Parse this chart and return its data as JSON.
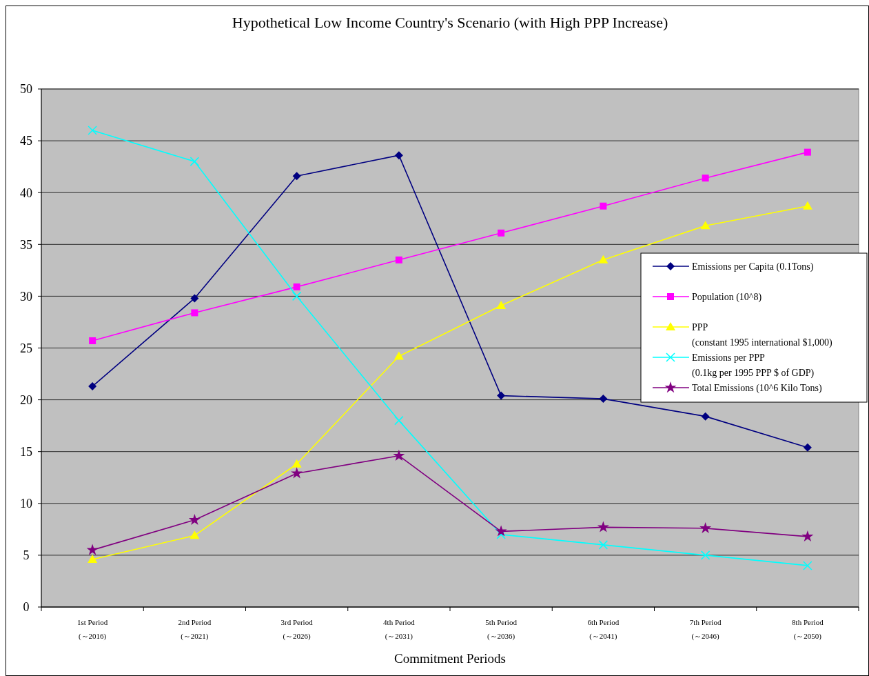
{
  "chart_data": {
    "type": "line",
    "title": "Hypothetical Low Income Country's Scenario (with High PPP Increase)",
    "xlabel": "Commitment Periods",
    "categories": [
      "1st Period\n(～2016)",
      "2nd Period\n(～2021)",
      "3rd Period\n(～2026)",
      "4th Period\n(～2031)",
      "5th Period\n(～2036)",
      "6th Period\n(～2041)",
      "7th Period\n(～2046)",
      "8th Period\n(～2050)"
    ],
    "series": [
      {
        "name": "Emissions per Capita (0.1Tons)",
        "color": "#000080",
        "marker": "diamond",
        "values": [
          21.3,
          29.8,
          41.6,
          43.6,
          20.4,
          20.1,
          18.4,
          15.4
        ]
      },
      {
        "name": "Population (10^8)",
        "color": "#ff00ff",
        "marker": "square",
        "values": [
          25.7,
          28.4,
          30.9,
          33.5,
          36.1,
          38.7,
          41.4,
          43.9
        ]
      },
      {
        "name": "PPP\n(constant 1995 international $1,000)",
        "color": "#ffff00",
        "marker": "triangle",
        "values": [
          4.6,
          6.9,
          13.8,
          24.2,
          29.1,
          33.5,
          36.8,
          38.7
        ]
      },
      {
        "name": "Emissions per PPP\n(0.1kg per 1995 PPP $ of GDP)",
        "color": "#00ffff",
        "marker": "cross",
        "values": [
          46.0,
          43.0,
          30.0,
          18.0,
          7.0,
          6.0,
          5.0,
          4.0
        ]
      },
      {
        "name": "Total Emissions (10^6 Kilo Tons)",
        "color": "#800080",
        "marker": "star",
        "values": [
          5.5,
          8.4,
          12.9,
          14.6,
          7.3,
          7.7,
          7.6,
          6.8
        ]
      }
    ],
    "ylim": [
      0,
      50
    ],
    "yticks": [
      0,
      5,
      10,
      15,
      20,
      25,
      30,
      35,
      40,
      45,
      50
    ],
    "grid": "y",
    "legend": "right"
  }
}
